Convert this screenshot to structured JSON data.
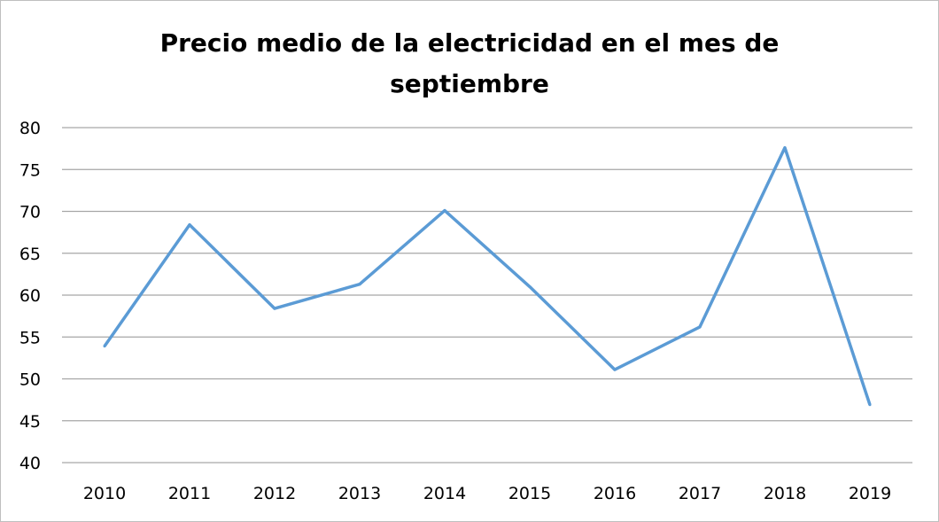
{
  "chart_data": {
    "type": "line",
    "title_lines": [
      "Precio medio de la electricidad en el mes de",
      "septiembre"
    ],
    "xlabel": "",
    "ylabel": "",
    "categories": [
      "2010",
      "2011",
      "2012",
      "2013",
      "2014",
      "2015",
      "2016",
      "2017",
      "2018",
      "2019"
    ],
    "series": [
      {
        "values": [
          53.9,
          68.4,
          58.4,
          61.3,
          70.1,
          61.0,
          51.1,
          56.2,
          77.6,
          46.9
        ],
        "color": "#5b9bd5"
      }
    ],
    "ylim": [
      40,
      80
    ],
    "yticks": [
      "40",
      "45",
      "50",
      "55",
      "60",
      "65",
      "70",
      "75",
      "80"
    ],
    "grid": true,
    "gridline_color": "#a6a6a6",
    "legend": "none"
  }
}
